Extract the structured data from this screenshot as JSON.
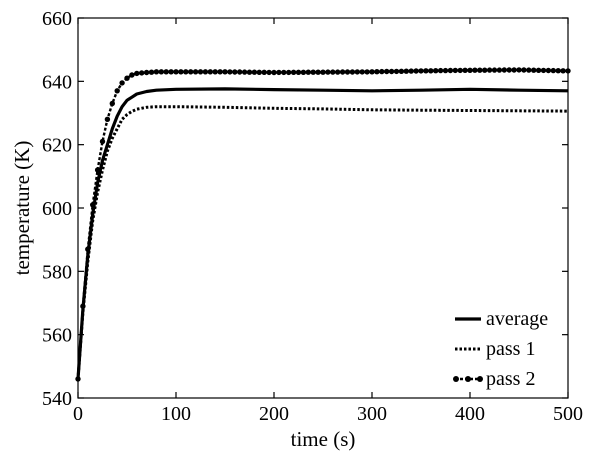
{
  "chart_data": {
    "type": "line",
    "xlabel": "time (s)",
    "ylabel": "temperature (K)",
    "xlim": [
      0,
      500
    ],
    "ylim": [
      540,
      660
    ],
    "xticks": [
      0,
      100,
      200,
      300,
      400,
      500
    ],
    "yticks": [
      540,
      560,
      580,
      600,
      620,
      640,
      660
    ],
    "grid": false,
    "legend_position": "bottom-right",
    "series": [
      {
        "name": "average",
        "style": "solid",
        "color": "#000000",
        "points": [
          [
            0,
            546
          ],
          [
            5,
            568
          ],
          [
            10,
            585
          ],
          [
            15,
            598
          ],
          [
            20,
            608
          ],
          [
            25,
            615
          ],
          [
            30,
            620
          ],
          [
            35,
            625
          ],
          [
            40,
            629
          ],
          [
            45,
            632
          ],
          [
            50,
            634
          ],
          [
            55,
            635
          ],
          [
            60,
            636
          ],
          [
            70,
            636.8
          ],
          [
            80,
            637.2
          ],
          [
            100,
            637.5
          ],
          [
            150,
            637.6
          ],
          [
            200,
            637.4
          ],
          [
            250,
            637.2
          ],
          [
            300,
            637.0
          ],
          [
            350,
            637.2
          ],
          [
            400,
            637.5
          ],
          [
            450,
            637.2
          ],
          [
            500,
            637.0
          ]
        ]
      },
      {
        "name": "pass 1",
        "style": "dotted",
        "color": "#000000",
        "points": [
          [
            0,
            546
          ],
          [
            5,
            567
          ],
          [
            10,
            583
          ],
          [
            15,
            596
          ],
          [
            20,
            605
          ],
          [
            25,
            612
          ],
          [
            30,
            618
          ],
          [
            35,
            622
          ],
          [
            40,
            625
          ],
          [
            45,
            628
          ],
          [
            50,
            629.5
          ],
          [
            55,
            630.5
          ],
          [
            60,
            631.2
          ],
          [
            70,
            631.8
          ],
          [
            80,
            632
          ],
          [
            100,
            632
          ],
          [
            150,
            631.8
          ],
          [
            200,
            631.5
          ],
          [
            250,
            631.3
          ],
          [
            300,
            631
          ],
          [
            350,
            630.9
          ],
          [
            400,
            630.8
          ],
          [
            450,
            630.7
          ],
          [
            500,
            630.6
          ]
        ]
      },
      {
        "name": "pass 2",
        "style": "dot-marker",
        "color": "#000000",
        "points": [
          [
            0,
            546
          ],
          [
            5,
            569
          ],
          [
            10,
            587
          ],
          [
            15,
            601
          ],
          [
            20,
            612
          ],
          [
            25,
            621
          ],
          [
            30,
            628
          ],
          [
            35,
            633
          ],
          [
            40,
            637
          ],
          [
            45,
            639.5
          ],
          [
            50,
            641
          ],
          [
            55,
            642
          ],
          [
            60,
            642.5
          ],
          [
            70,
            642.8
          ],
          [
            80,
            643
          ],
          [
            100,
            643
          ],
          [
            150,
            643
          ],
          [
            200,
            642.8
          ],
          [
            250,
            642.9
          ],
          [
            300,
            643
          ],
          [
            350,
            643.3
          ],
          [
            400,
            643.5
          ],
          [
            450,
            643.6
          ],
          [
            500,
            643.3
          ]
        ]
      }
    ]
  }
}
